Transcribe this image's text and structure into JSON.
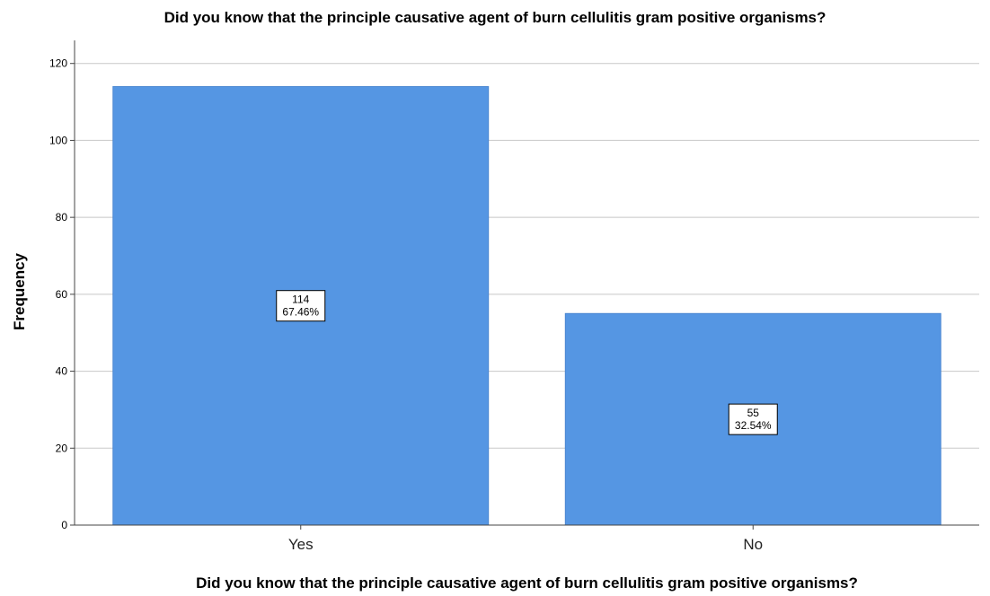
{
  "chart_data": {
    "type": "bar",
    "title": "Did you know that the principle causative agent of burn cellulitis gram positive organisms?",
    "xlabel": "Did you know that the principle causative agent of burn cellulitis gram positive organisms?",
    "ylabel": "Frequency",
    "categories": [
      "Yes",
      "No"
    ],
    "values": [
      114,
      55
    ],
    "percent_labels": [
      "67.46%",
      "32.54%"
    ],
    "ylim": [
      0,
      126
    ],
    "yticks": [
      0,
      20,
      40,
      60,
      80,
      100,
      120
    ],
    "grid": true,
    "bar_color": "#5596e3"
  }
}
